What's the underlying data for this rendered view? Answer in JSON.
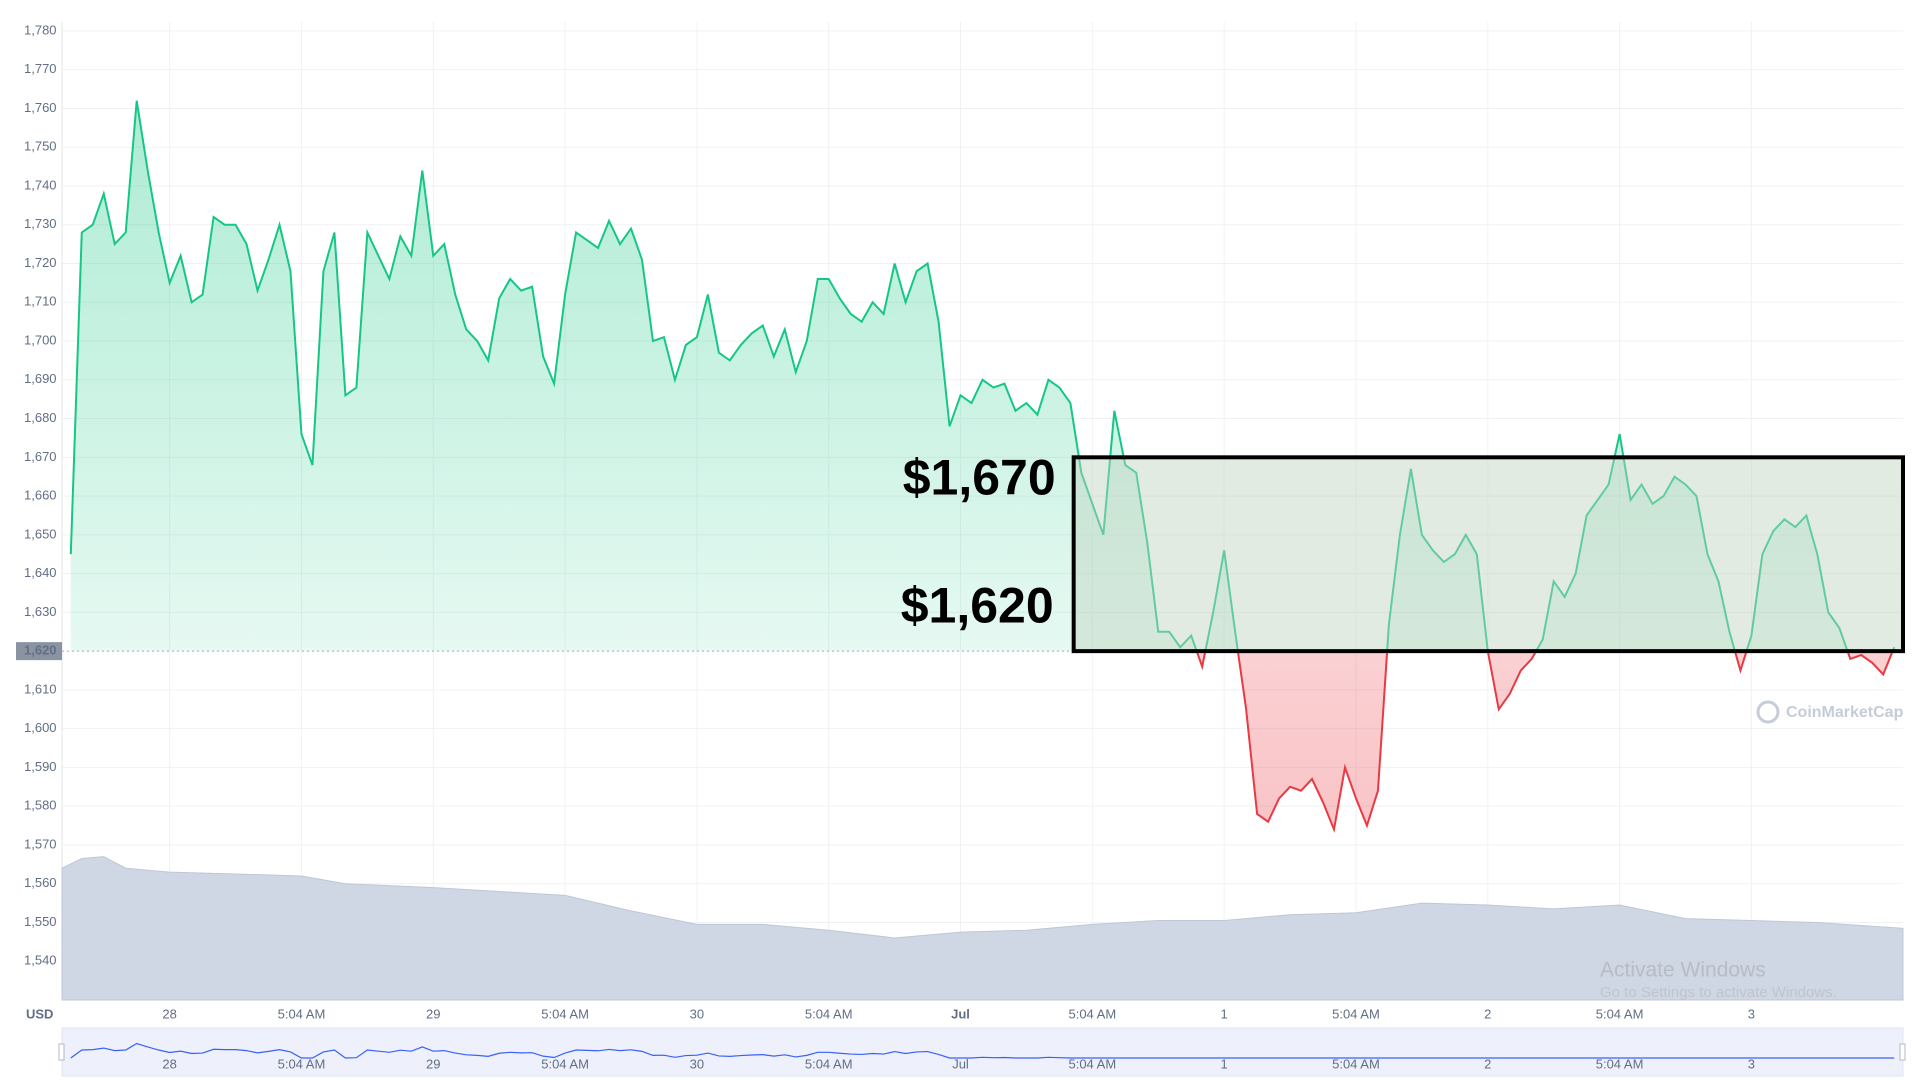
{
  "chart_data": {
    "type": "line",
    "x": [
      -9,
      -8,
      -7,
      -6,
      -5,
      -4,
      -3,
      -2,
      -1,
      0,
      1,
      2,
      3,
      4,
      5,
      6,
      7,
      8,
      9,
      10,
      11,
      12,
      13,
      14,
      15,
      16,
      17,
      18,
      19,
      20,
      21,
      22,
      23,
      24,
      25,
      26,
      27,
      28,
      29,
      30,
      31,
      32,
      33,
      34,
      35,
      36,
      37,
      38,
      39,
      40,
      41,
      42,
      43,
      44,
      45,
      46,
      47,
      48,
      49,
      50,
      51,
      52,
      53,
      54,
      55,
      56,
      57,
      58,
      59,
      60,
      61,
      62,
      63,
      64,
      65,
      66,
      67,
      68,
      69,
      70,
      71,
      72,
      73,
      74,
      75,
      76,
      77,
      78,
      79,
      80,
      81,
      82,
      83,
      84,
      85,
      86,
      87,
      88,
      89,
      90,
      91,
      92,
      93,
      94,
      95,
      96,
      97,
      98,
      99,
      100,
      101,
      102,
      103,
      104,
      105,
      106,
      107,
      108,
      109,
      110,
      111,
      112,
      113,
      114,
      115,
      116,
      117,
      118,
      119,
      120,
      121,
      122,
      123,
      124,
      125,
      126,
      127,
      128,
      129,
      130,
      131,
      132,
      133,
      134,
      135,
      136,
      137,
      138,
      139,
      140,
      141,
      142,
      143,
      144,
      145,
      146,
      147,
      148,
      149,
      150,
      151,
      152,
      153,
      154,
      155,
      156,
      157
    ],
    "values": [
      1645,
      1728,
      1730,
      1738,
      1725,
      1728,
      1762,
      1744,
      1728,
      1715,
      1722,
      1710,
      1712,
      1732,
      1730,
      1730,
      1725,
      1713,
      1721,
      1730,
      1718,
      1676,
      1668,
      1718,
      1728,
      1686,
      1688,
      1728,
      1722,
      1716,
      1727,
      1722,
      1744,
      1722,
      1725,
      1712,
      1703,
      1700,
      1695,
      1711,
      1716,
      1713,
      1714,
      1696,
      1689,
      1712,
      1728,
      1726,
      1724,
      1731,
      1725,
      1729,
      1721,
      1700,
      1701,
      1690,
      1699,
      1701,
      1712,
      1697,
      1695,
      1699,
      1702,
      1704,
      1696,
      1703,
      1692,
      1700,
      1716,
      1716,
      1711,
      1707,
      1705,
      1710,
      1707,
      1720,
      1710,
      1718,
      1720,
      1705,
      1678,
      1686,
      1684,
      1690,
      1688,
      1689,
      1682,
      1684,
      1681,
      1690,
      1688,
      1684,
      1666,
      1658,
      1650,
      1682,
      1668,
      1666,
      1648,
      1625,
      1625,
      1621,
      1624,
      1616,
      1630,
      1646,
      1625,
      1605,
      1578,
      1576,
      1582,
      1585,
      1584,
      1587,
      1581,
      1574,
      1590,
      1582,
      1575,
      1584,
      1627,
      1650,
      1667,
      1650,
      1646,
      1643,
      1645,
      1650,
      1645,
      1620,
      1605,
      1609,
      1615,
      1618,
      1623,
      1638,
      1634,
      1640,
      1655,
      1659,
      1663,
      1676,
      1659,
      1663,
      1658,
      1660,
      1665,
      1663,
      1660,
      1645,
      1638,
      1625,
      1615,
      1624,
      1645,
      1651,
      1654,
      1652,
      1655,
      1645,
      1630,
      1626,
      1618,
      1619,
      1617,
      1614,
      1621
    ],
    "color_up": "#16c784",
    "color_down": "#ea3943",
    "baseline": {
      "value": 1620,
      "label": "1,620"
    },
    "volume": {
      "x": [
        -9.8,
        -8,
        -6,
        -4,
        0,
        6,
        12,
        16,
        24,
        30,
        36,
        42,
        48,
        54,
        60,
        66,
        72,
        78,
        84,
        90,
        96,
        102,
        108,
        114,
        120,
        126,
        132,
        138,
        144,
        150,
        157.8
      ],
      "values": [
        1564,
        1566.5,
        1567,
        1564,
        1563,
        1562.5,
        1562,
        1560,
        1559,
        1558,
        1557,
        1553,
        1549.5,
        1549.5,
        1548,
        1546,
        1547.5,
        1548,
        1549.5,
        1550.5,
        1550.5,
        1552,
        1552.5,
        1555,
        1554.5,
        1553.5,
        1554.5,
        1551,
        1550.5,
        1550,
        1548.5
      ],
      "color": "#cfd6e4"
    },
    "xlim": [
      -9.8,
      157.8
    ],
    "ylim": [
      1530,
      1782.3
    ],
    "xticks": [
      {
        "value": 0,
        "label": "28"
      },
      {
        "value": 12,
        "label": "5:04 AM"
      },
      {
        "value": 24,
        "label": "29"
      },
      {
        "value": 36,
        "label": "5:04 AM"
      },
      {
        "value": 48,
        "label": "30"
      },
      {
        "value": 60,
        "label": "5:04 AM"
      },
      {
        "value": 72,
        "label": "Jul"
      },
      {
        "value": 84,
        "label": "5:04 AM"
      },
      {
        "value": 96,
        "label": "1"
      },
      {
        "value": 108,
        "label": "5:04 AM"
      },
      {
        "value": 120,
        "label": "2"
      },
      {
        "value": 132,
        "label": "5:04 AM"
      },
      {
        "value": 144,
        "label": "3"
      }
    ],
    "yticks": [
      {
        "value": 1540,
        "label": "1,540"
      },
      {
        "value": 1550,
        "label": "1,550"
      },
      {
        "value": 1560,
        "label": "1,560"
      },
      {
        "value": 1570,
        "label": "1,570"
      },
      {
        "value": 1580,
        "label": "1,580"
      },
      {
        "value": 1590,
        "label": "1,590"
      },
      {
        "value": 1600,
        "label": "1,600"
      },
      {
        "value": 1610,
        "label": "1,610"
      },
      {
        "value": 1630,
        "label": "1,630"
      },
      {
        "value": 1640,
        "label": "1,640"
      },
      {
        "value": 1650,
        "label": "1,650"
      },
      {
        "value": 1660,
        "label": "1,660"
      },
      {
        "value": 1670,
        "label": "1,670"
      },
      {
        "value": 1680,
        "label": "1,680"
      },
      {
        "value": 1690,
        "label": "1,690"
      },
      {
        "value": 1700,
        "label": "1,700"
      },
      {
        "value": 1710,
        "label": "1,710"
      },
      {
        "value": 1720,
        "label": "1,720"
      },
      {
        "value": 1730,
        "label": "1,730"
      },
      {
        "value": 1740,
        "label": "1,740"
      },
      {
        "value": 1750,
        "label": "1,750"
      },
      {
        "value": 1760,
        "label": "1,760"
      },
      {
        "value": 1770,
        "label": "1,770"
      },
      {
        "value": 1780,
        "label": "1,780"
      }
    ],
    "grid": true,
    "unit_label": "USD",
    "annotation": {
      "xrange": [
        82.3,
        157.8
      ],
      "labels": [
        {
          "value": 1670,
          "label": "$1,670"
        },
        {
          "value": 1620,
          "label": "$1,620"
        }
      ]
    },
    "watermarks": [
      "CoinMarketCap",
      "Activate Windows",
      "Go to Settings to activate Windows."
    ]
  }
}
